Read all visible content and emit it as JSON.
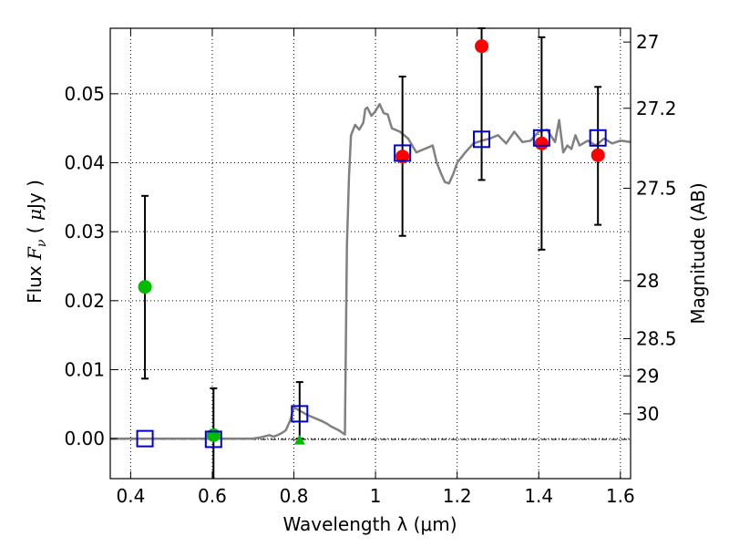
{
  "chart_data": {
    "type": "scatter",
    "xlabel": "Wavelength  λ (μm)",
    "ylabel_left": "Flux  F_ν  ( μJy )",
    "ylabel_left_parts": [
      "Flux  ",
      "F",
      "ν",
      "  ( ",
      "μ",
      "Jy )"
    ],
    "ylabel_right": "Magnitude (AB)",
    "xlim": [
      0.35,
      1.625
    ],
    "ylim": [
      -0.0058,
      0.0595
    ],
    "grid": true,
    "x_ticks": [
      {
        "value": 0.4,
        "label": "0.4"
      },
      {
        "value": 0.6,
        "label": "0.6"
      },
      {
        "value": 0.8,
        "label": "0.8"
      },
      {
        "value": 1.0,
        "label": "1"
      },
      {
        "value": 1.2,
        "label": "1.2"
      },
      {
        "value": 1.4,
        "label": "1.4"
      },
      {
        "value": 1.6,
        "label": "1.6"
      }
    ],
    "y_ticks_left": [
      {
        "value": 0.0,
        "label": "0.00"
      },
      {
        "value": 0.01,
        "label": "0.01"
      },
      {
        "value": 0.02,
        "label": "0.02"
      },
      {
        "value": 0.03,
        "label": "0.03"
      },
      {
        "value": 0.04,
        "label": "0.04"
      },
      {
        "value": 0.05,
        "label": "0.05"
      }
    ],
    "y_ticks_right": [
      {
        "flux": 0.0575,
        "label": "27"
      },
      {
        "flux": 0.0479,
        "label": "27.2"
      },
      {
        "flux": 0.0363,
        "label": "27.5"
      },
      {
        "flux": 0.0229,
        "label": "28"
      },
      {
        "flux": 0.0145,
        "label": "28.5"
      },
      {
        "flux": 0.0091,
        "label": "29"
      },
      {
        "flux": 0.0036,
        "label": "30"
      }
    ],
    "model_spectrum": {
      "color": "#808080",
      "x": [
        0.35,
        0.7,
        0.72,
        0.74,
        0.75,
        0.76,
        0.77,
        0.78,
        0.79,
        0.8,
        0.81,
        0.83,
        0.85,
        0.87,
        0.88,
        0.89,
        0.9,
        0.91,
        0.92,
        0.925,
        0.93,
        0.935,
        0.94,
        0.95,
        0.96,
        0.97,
        0.975,
        0.98,
        0.99,
        1.0,
        1.01,
        1.02,
        1.03,
        1.04,
        1.06,
        1.08,
        1.1,
        1.12,
        1.14,
        1.15,
        1.16,
        1.17,
        1.18,
        1.19,
        1.2,
        1.22,
        1.24,
        1.26,
        1.28,
        1.3,
        1.32,
        1.34,
        1.36,
        1.38,
        1.4,
        1.42,
        1.44,
        1.45,
        1.46,
        1.47,
        1.48,
        1.49,
        1.5,
        1.52,
        1.54,
        1.56,
        1.58,
        1.6,
        1.625
      ],
      "y": [
        0.0,
        0.0,
        0.0002,
        0.0005,
        0.0003,
        0.0005,
        0.0008,
        0.0012,
        0.0025,
        0.0045,
        0.0042,
        0.0035,
        0.003,
        0.0025,
        0.0022,
        0.0018,
        0.0015,
        0.0012,
        0.0008,
        0.0006,
        0.028,
        0.038,
        0.044,
        0.0455,
        0.0448,
        0.0458,
        0.0478,
        0.048,
        0.0468,
        0.0475,
        0.0485,
        0.0472,
        0.047,
        0.045,
        0.0445,
        0.0435,
        0.0415,
        0.042,
        0.0425,
        0.04,
        0.0385,
        0.0372,
        0.037,
        0.0383,
        0.04,
        0.0415,
        0.0428,
        0.0432,
        0.0435,
        0.044,
        0.0428,
        0.0445,
        0.043,
        0.0432,
        0.0445,
        0.0448,
        0.043,
        0.0462,
        0.0415,
        0.0425,
        0.042,
        0.044,
        0.0425,
        0.0432,
        0.0425,
        0.0435,
        0.0428,
        0.0432,
        0.043
      ]
    },
    "series": [
      {
        "marker": "circle",
        "color": "#00bb00",
        "points": [
          {
            "x": 0.435,
            "y": 0.022,
            "yerr_low": 0.0087,
            "yerr_high": 0.0352
          },
          {
            "x": 0.603,
            "y": 0.0005,
            "yerr_low": -0.0065,
            "yerr_high": 0.0073
          }
        ]
      },
      {
        "marker": "triangle",
        "color": "#00bb00",
        "points": [
          {
            "x": 0.814,
            "y": -0.0002,
            "yerr_low": 0.0,
            "yerr_high": 0.0082
          }
        ]
      },
      {
        "marker": "circle",
        "color": "#ff0000",
        "points": [
          {
            "x": 1.066,
            "y": 0.0409,
            "yerr_low": 0.0294,
            "yerr_high": 0.0525
          },
          {
            "x": 1.26,
            "y": 0.0569,
            "yerr_low": 0.0375,
            "yerr_high": 0.0595
          },
          {
            "x": 1.407,
            "y": 0.0428,
            "yerr_low": 0.0274,
            "yerr_high": 0.0582
          },
          {
            "x": 1.545,
            "y": 0.0411,
            "yerr_low": 0.031,
            "yerr_high": 0.051
          }
        ]
      },
      {
        "marker": "open-square",
        "color": "#0000cc",
        "points": [
          {
            "x": 0.435,
            "y": 0.0
          },
          {
            "x": 0.603,
            "y": -0.0001
          },
          {
            "x": 0.814,
            "y": 0.0036
          },
          {
            "x": 1.066,
            "y": 0.0414
          },
          {
            "x": 1.26,
            "y": 0.0434
          },
          {
            "x": 1.407,
            "y": 0.0436
          },
          {
            "x": 1.545,
            "y": 0.0436
          }
        ]
      }
    ]
  }
}
